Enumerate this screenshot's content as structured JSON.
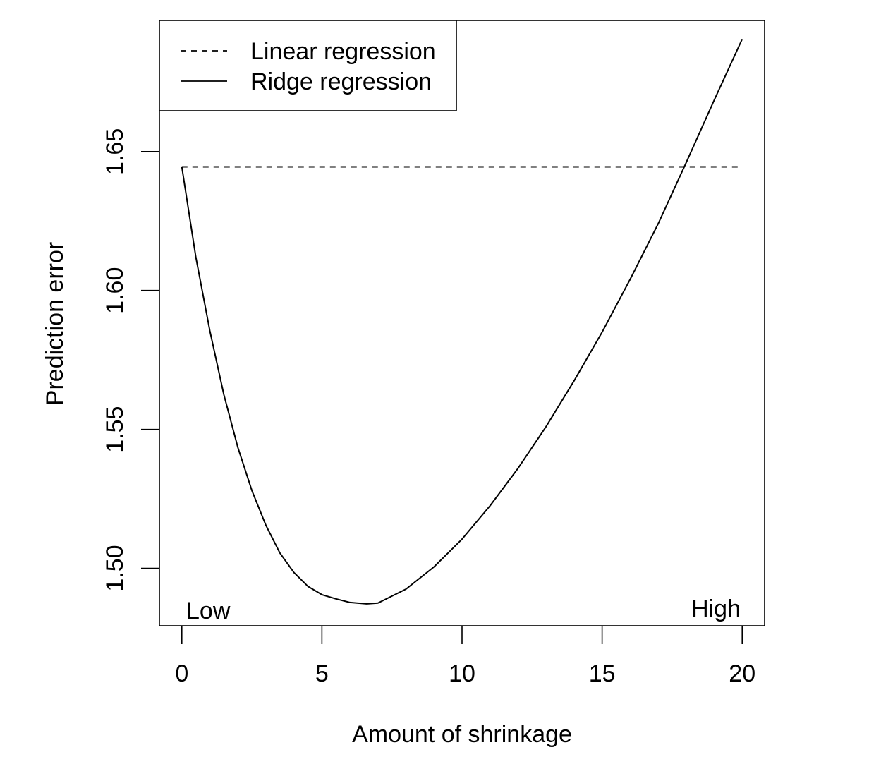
{
  "chart_data": {
    "type": "line",
    "title": "",
    "xlabel": "Amount of shrinkage",
    "ylabel": "Prediction error",
    "xlim": [
      -0.8,
      20.8
    ],
    "ylim": [
      1.4793,
      1.6972
    ],
    "x_ticks": [
      0,
      5,
      10,
      15,
      20
    ],
    "x_tick_labels": [
      "0",
      "5",
      "10",
      "15",
      "20"
    ],
    "y_ticks": [
      1.5,
      1.55,
      1.6,
      1.65
    ],
    "y_tick_labels": [
      "1.50",
      "1.55",
      "1.60",
      "1.65"
    ],
    "grid": false,
    "legend_position": "top-left",
    "annotations": {
      "low": "Low",
      "high": "High"
    },
    "series": [
      {
        "name": "Linear regression",
        "style": "dashed",
        "color": "#000000",
        "x": [
          0,
          20
        ],
        "y": [
          1.6445,
          1.6445
        ]
      },
      {
        "name": "Ridge regression",
        "style": "solid",
        "color": "#000000",
        "x": [
          0,
          0.5,
          1,
          1.5,
          2,
          2.5,
          3,
          3.5,
          4,
          4.5,
          5,
          5.5,
          6,
          6.6,
          7,
          8,
          9,
          10,
          11,
          12,
          13,
          14,
          15,
          16,
          17,
          18,
          19,
          20
        ],
        "y": [
          1.6445,
          1.612,
          1.5855,
          1.5625,
          1.5435,
          1.528,
          1.5155,
          1.5055,
          1.4985,
          1.4935,
          1.4905,
          1.489,
          1.4877,
          1.4872,
          1.4875,
          1.4925,
          1.5005,
          1.5105,
          1.5225,
          1.536,
          1.551,
          1.5675,
          1.585,
          1.604,
          1.624,
          1.646,
          1.6685,
          1.6905
        ]
      }
    ]
  }
}
